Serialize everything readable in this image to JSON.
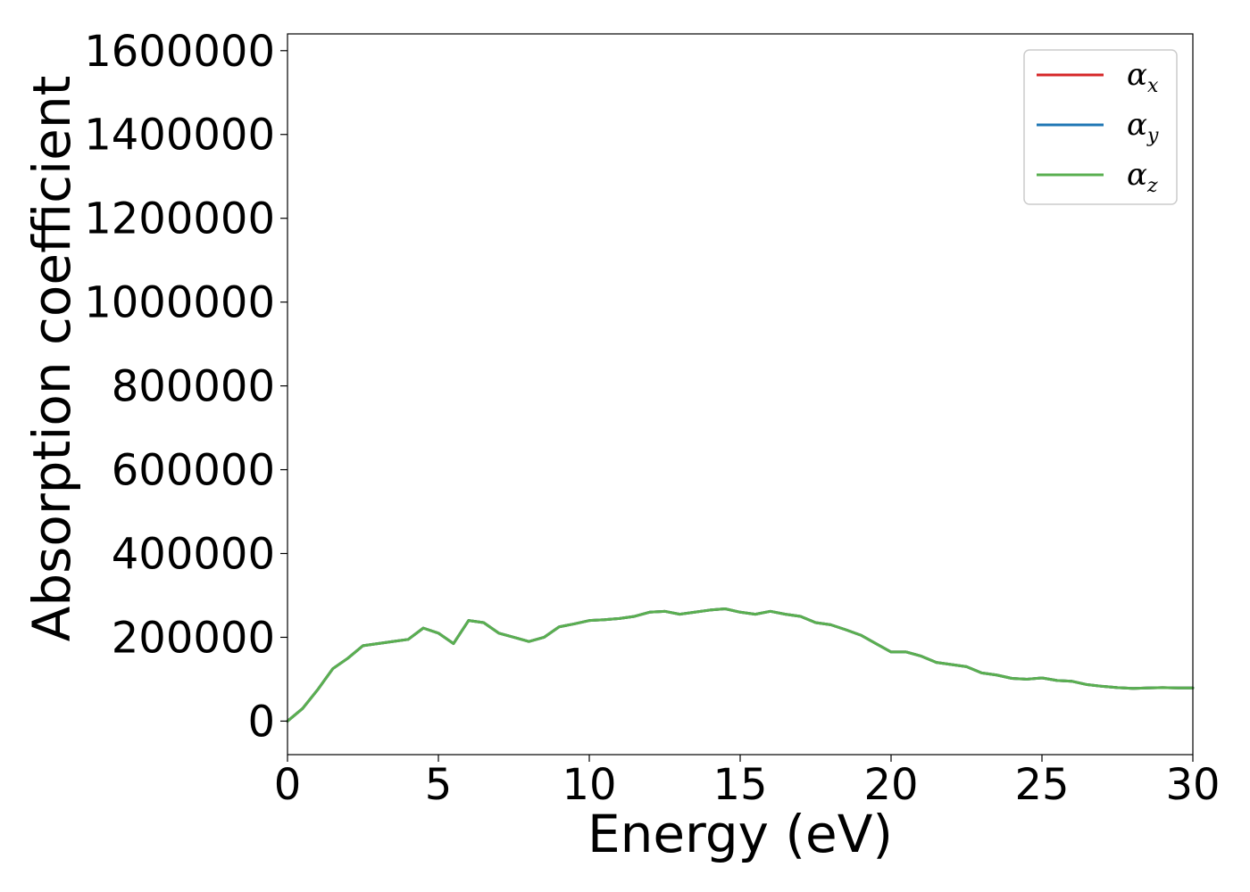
{
  "chart_data": {
    "type": "line",
    "xlabel": "Energy (eV)",
    "ylabel": "Absorption coefficient",
    "xlim": [
      0,
      30
    ],
    "ylim": [
      -80000,
      1640000
    ],
    "xticks": [
      "0",
      "5",
      "10",
      "15",
      "20",
      "25",
      "30"
    ],
    "yticks": [
      "0",
      "200000",
      "400000",
      "600000",
      "800000",
      "1000000",
      "1200000",
      "1400000",
      "1600000"
    ],
    "grid": false,
    "legend_position": "top-right",
    "legend": [
      {
        "symbol": "α",
        "sub": "x",
        "color": "#d62728"
      },
      {
        "symbol": "α",
        "sub": "y",
        "color": "#1f77b4"
      },
      {
        "symbol": "α",
        "sub": "z",
        "color": "#5aaf50"
      }
    ],
    "x": [
      0,
      0.5,
      1,
      1.5,
      2,
      2.5,
      3,
      3.5,
      4,
      4.5,
      5,
      5.5,
      6,
      6.5,
      7,
      7.5,
      8,
      8.5,
      9,
      9.5,
      10,
      10.5,
      11,
      11.5,
      12,
      12.5,
      13,
      13.5,
      14,
      14.5,
      15,
      15.5,
      16,
      16.5,
      17,
      17.5,
      18,
      18.5,
      19,
      19.5,
      20,
      20.5,
      21,
      21.5,
      22,
      22.5,
      23,
      23.5,
      24,
      24.5,
      25,
      25.5,
      26,
      26.5,
      27,
      27.5,
      28,
      28.5,
      29,
      29.5,
      30
    ],
    "series": [
      {
        "values": [
          0,
          30000,
          75000,
          125000,
          150000,
          180000,
          185000,
          190000,
          195000,
          222000,
          210000,
          185000,
          240000,
          235000,
          210000,
          200000,
          190000,
          200000,
          225000,
          232000,
          240000,
          242000,
          245000,
          250000,
          260000,
          262000,
          255000,
          260000,
          265000,
          268000,
          260000,
          255000,
          262000,
          255000,
          250000,
          235000,
          230000,
          218000,
          205000,
          185000,
          165000,
          165000,
          155000,
          140000,
          135000,
          130000,
          115000,
          110000,
          102000,
          100000,
          103000,
          97000,
          95000,
          87000,
          83000,
          80000,
          78000,
          79000,
          80000,
          79000,
          79000
        ]
      },
      {
        "values": [
          0,
          30000,
          75000,
          125000,
          150000,
          180000,
          185000,
          190000,
          195000,
          222000,
          210000,
          185000,
          240000,
          235000,
          210000,
          200000,
          190000,
          200000,
          225000,
          232000,
          240000,
          242000,
          245000,
          250000,
          260000,
          262000,
          255000,
          260000,
          265000,
          268000,
          260000,
          255000,
          262000,
          255000,
          250000,
          235000,
          230000,
          218000,
          205000,
          185000,
          165000,
          165000,
          155000,
          140000,
          135000,
          130000,
          115000,
          110000,
          102000,
          100000,
          103000,
          97000,
          95000,
          87000,
          83000,
          80000,
          78000,
          79000,
          80000,
          79000,
          79000
        ]
      },
      {
        "values": [
          0,
          30000,
          75000,
          125000,
          150000,
          180000,
          185000,
          190000,
          195000,
          222000,
          210000,
          185000,
          240000,
          235000,
          210000,
          200000,
          190000,
          200000,
          225000,
          232000,
          240000,
          242000,
          245000,
          250000,
          260000,
          262000,
          255000,
          260000,
          265000,
          268000,
          260000,
          255000,
          262000,
          255000,
          250000,
          235000,
          230000,
          218000,
          205000,
          185000,
          165000,
          165000,
          155000,
          140000,
          135000,
          130000,
          115000,
          110000,
          102000,
          100000,
          103000,
          97000,
          95000,
          87000,
          83000,
          80000,
          78000,
          79000,
          80000,
          79000,
          79000
        ]
      }
    ]
  }
}
